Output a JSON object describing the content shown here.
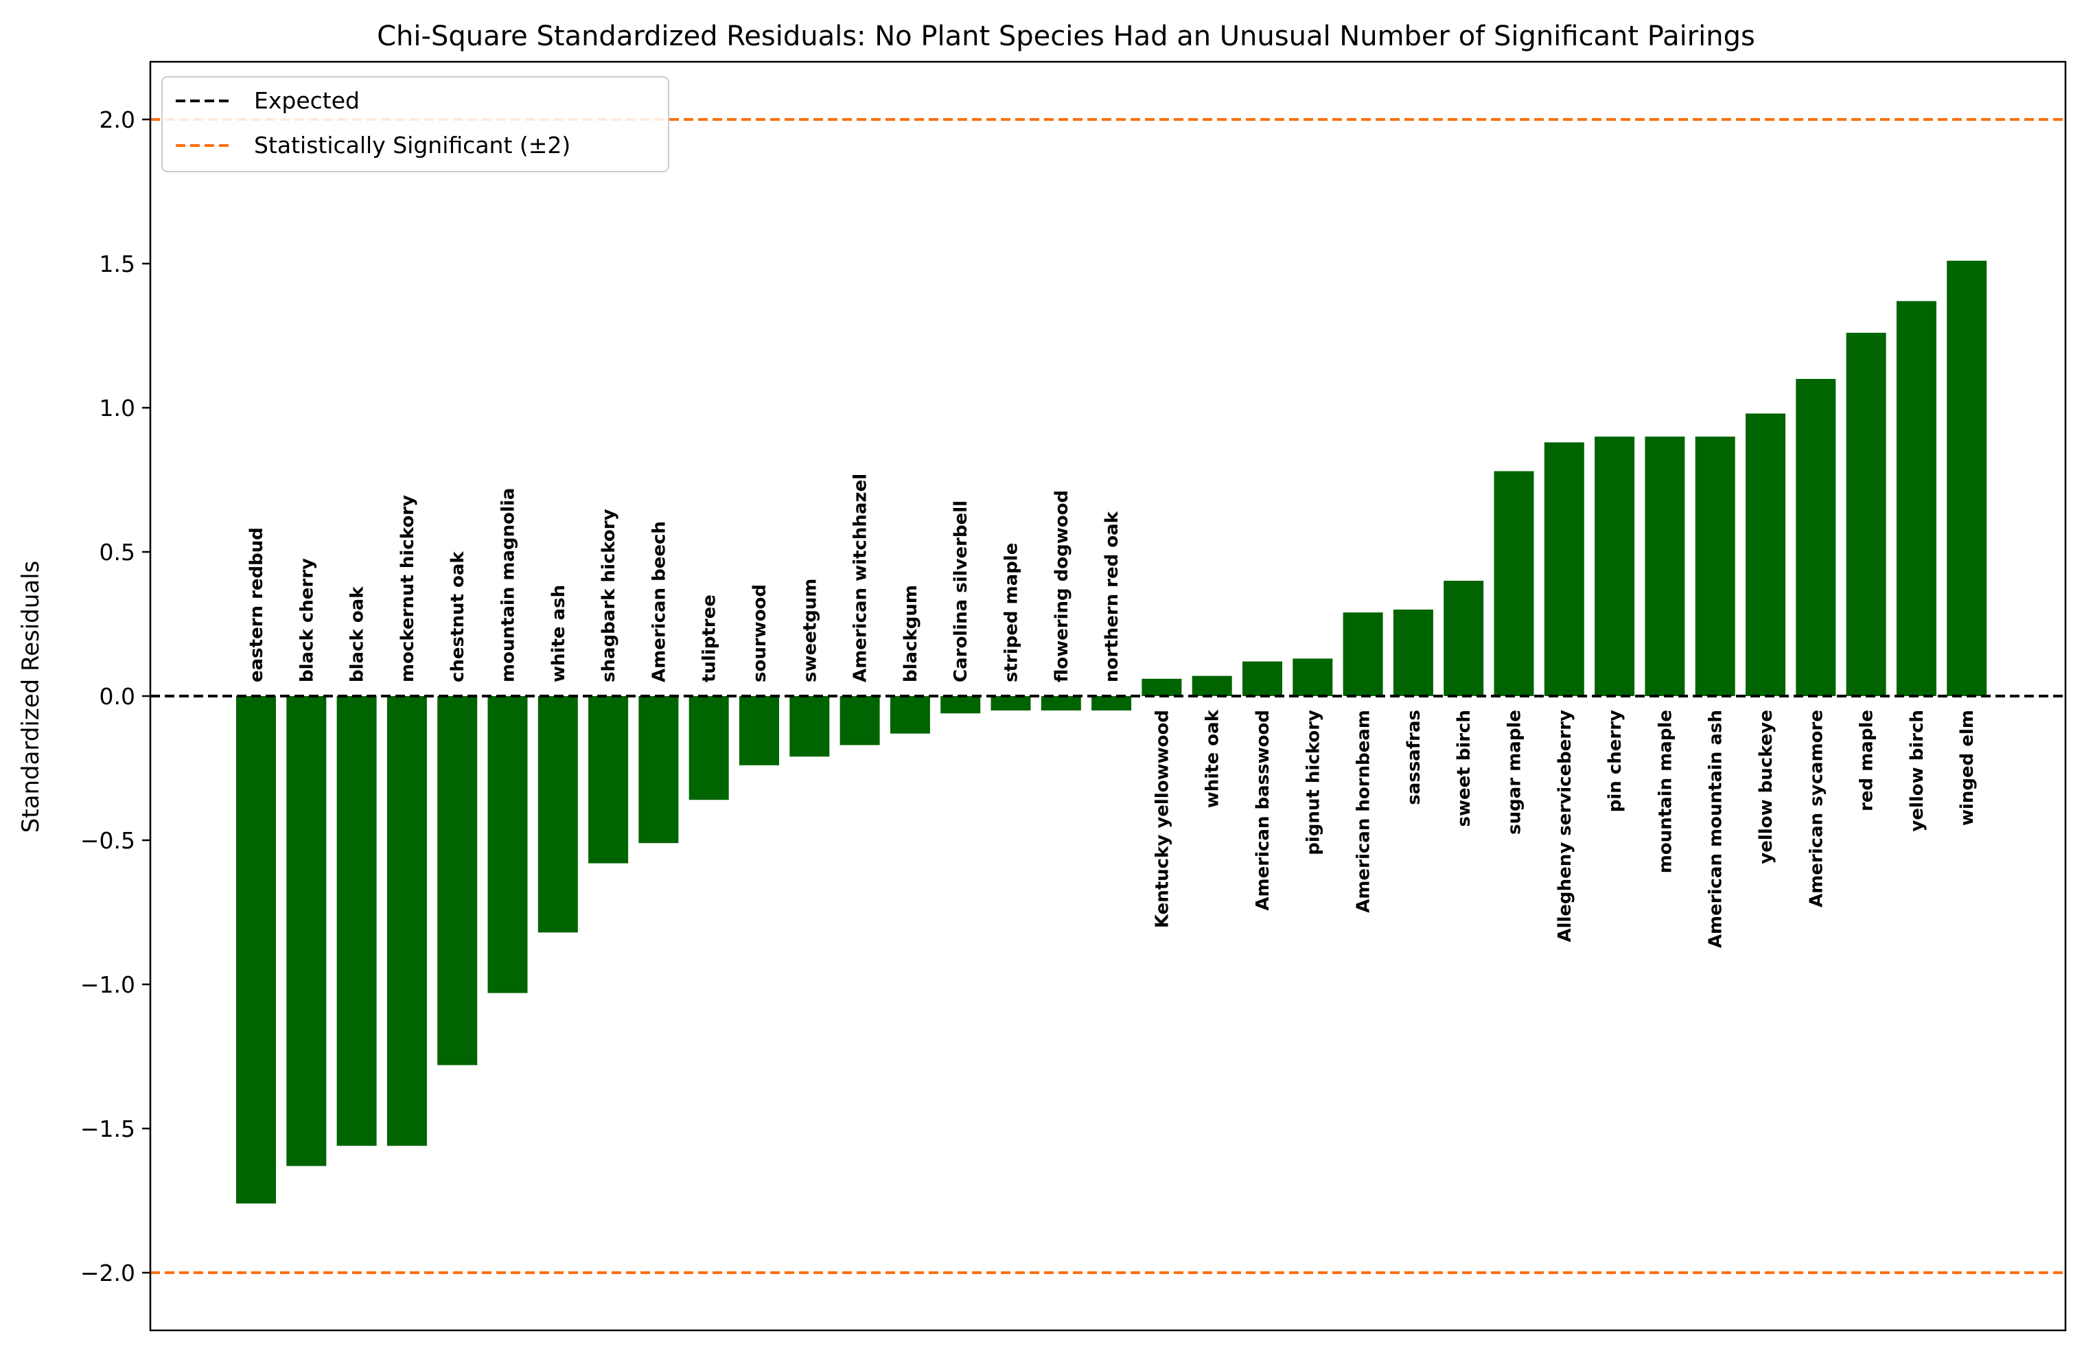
{
  "chart_data": {
    "type": "bar",
    "title": "Chi-Square Standardized Residuals: No Plant Species Had an Unusual Number of Significant Pairings",
    "xlabel": "",
    "ylabel": "Standardized Residuals",
    "ylim": [
      -2.2,
      2.2
    ],
    "yticks": [
      "2.0",
      "1.5",
      "1.0",
      "0.5",
      "0.0",
      "−0.5",
      "−1.0",
      "−1.5",
      "−2.0"
    ],
    "ytick_values": [
      2.0,
      1.5,
      1.0,
      0.5,
      0.0,
      -0.5,
      -1.0,
      -1.5,
      -2.0
    ],
    "grid": false,
    "legend_position": "top-left",
    "categories": [
      "eastern redbud",
      "black cherry",
      "black oak",
      "mockernut hickory",
      "chestnut oak",
      "mountain magnolia",
      "white ash",
      "shagbark hickory",
      "American beech",
      "tuliptree",
      "sourwood",
      "sweetgum",
      "American witchhazel",
      "blackgum",
      "Carolina silverbell",
      "striped maple",
      "flowering dogwood",
      "northern red oak",
      "Kentucky yellowwood",
      "white oak",
      "American basswood",
      "pignut hickory",
      "American hornbeam",
      "sassafras",
      "sweet birch",
      "sugar maple",
      "Allegheny serviceberry",
      "pin cherry",
      "mountain maple",
      "American mountain ash",
      "yellow buckeye",
      "American sycamore",
      "red maple",
      "yellow birch",
      "winged elm"
    ],
    "values": [
      -1.76,
      -1.63,
      -1.56,
      -1.56,
      -1.28,
      -1.03,
      -0.82,
      -0.58,
      -0.51,
      -0.36,
      -0.24,
      -0.21,
      -0.17,
      -0.13,
      -0.06,
      -0.05,
      -0.05,
      -0.05,
      0.06,
      0.07,
      0.12,
      0.13,
      0.29,
      0.3,
      0.4,
      0.78,
      0.88,
      0.9,
      0.9,
      0.9,
      0.98,
      1.1,
      1.26,
      1.37,
      1.51
    ],
    "bar_color": "#006400",
    "reference_lines": [
      {
        "label": "Expected",
        "value": 0.0,
        "color": "#000000",
        "style": "dashed"
      },
      {
        "label": "Statistically Significant (±2)",
        "values": [
          2.0,
          -2.0
        ],
        "color": "#ff7010",
        "style": "dashed"
      }
    ]
  }
}
